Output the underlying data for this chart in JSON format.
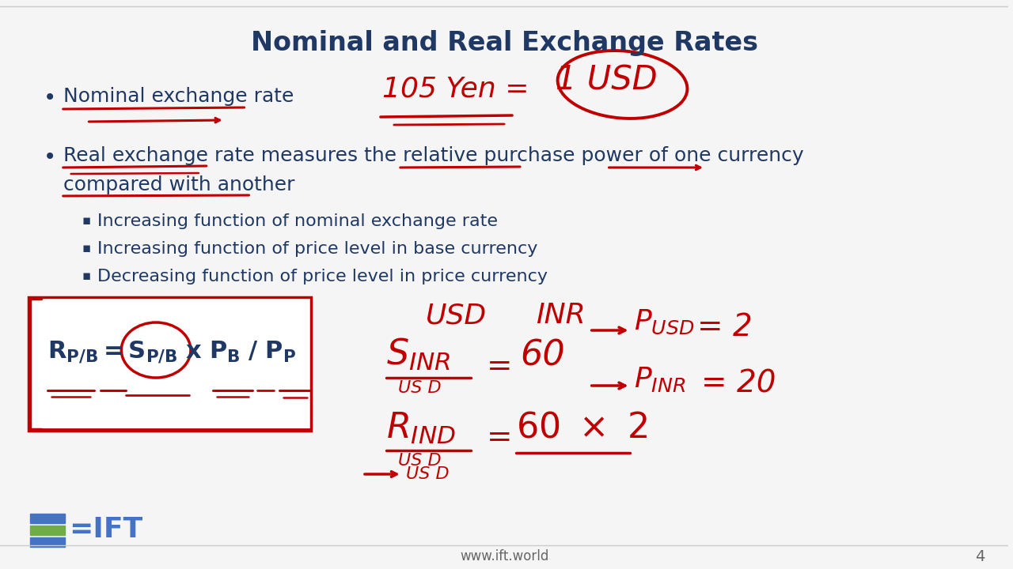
{
  "title": "Nominal and Real Exchange Rates",
  "title_fontsize": 24,
  "title_color": "#1F3864",
  "background_color": "#F5F5F5",
  "text_color": "#1F3864",
  "red_color": "#C00000",
  "bullet1": "Nominal exchange rate",
  "bullet2_line1": "Real exchange rate measures the relative purchase power of one currency",
  "bullet2_line2": "compared with another",
  "sub1": "Increasing function of nominal exchange rate",
  "sub2": "Increasing function of price level in base currency",
  "sub3": "Decreasing function of price level in price currency",
  "footer": "www.ift.world",
  "page_num": "4",
  "logo_bar_colors": [
    "#4472C4",
    "#70AD47",
    "#4472C4"
  ],
  "logo_text_color": "#4472C4"
}
